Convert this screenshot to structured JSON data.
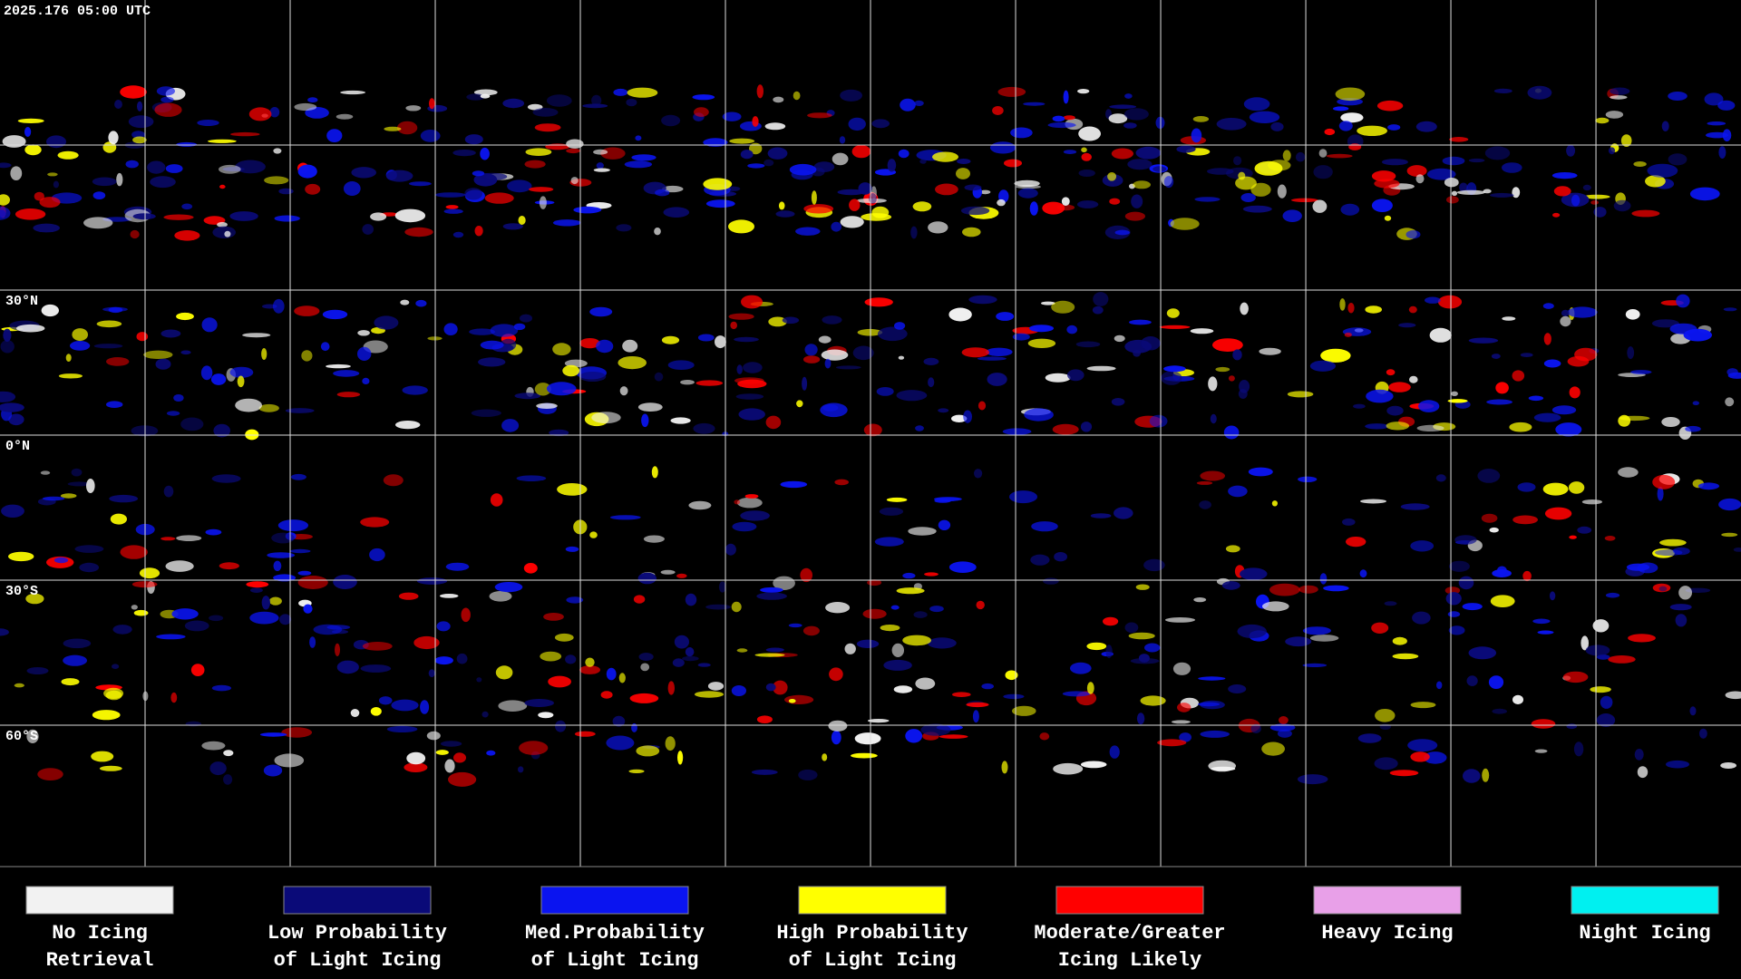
{
  "header": {
    "timestamp": "2025.176 05:00 UTC"
  },
  "grid": {
    "lat_labels": [
      "30°N",
      "0°N",
      "30°S",
      "60°S"
    ]
  },
  "legend": {
    "items": [
      {
        "lines": [
          "No Icing",
          "Retrieval"
        ],
        "color": "#f2f2f2"
      },
      {
        "lines": [
          "Low Probability",
          "of Light Icing"
        ],
        "color": "#0a0a78"
      },
      {
        "lines": [
          "Med.Probability",
          "of Light Icing"
        ],
        "color": "#0a14f0"
      },
      {
        "lines": [
          "High Probability",
          "of Light Icing"
        ],
        "color": "#ffff00"
      },
      {
        "lines": [
          "Moderate/Greater",
          "Icing Likely"
        ],
        "color": "#ff0000"
      },
      {
        "lines": [
          "Heavy Icing"
        ],
        "color": "#e8a0e8"
      },
      {
        "lines": [
          "Night Icing"
        ],
        "color": "#00f0f0"
      }
    ]
  }
}
